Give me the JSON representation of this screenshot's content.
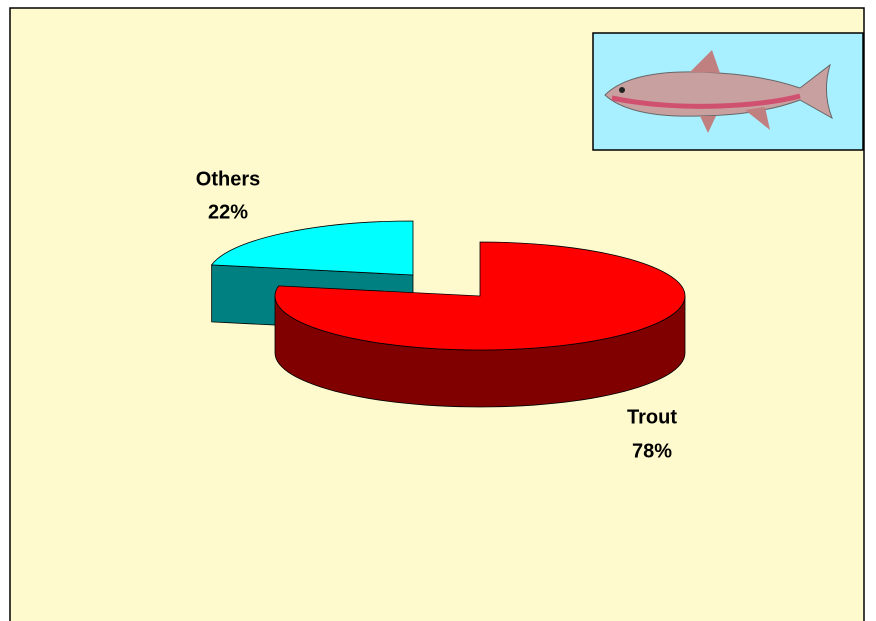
{
  "chart_data": {
    "type": "pie3d",
    "categories": [
      "Trout",
      "Others"
    ],
    "values": [
      78,
      22
    ],
    "value_labels": [
      "78%",
      "22%"
    ],
    "colors": [
      "#ff0000",
      "#00ffff"
    ],
    "side_colors": [
      "#800000",
      "#008080"
    ],
    "explode": [
      false,
      true
    ]
  }
}
